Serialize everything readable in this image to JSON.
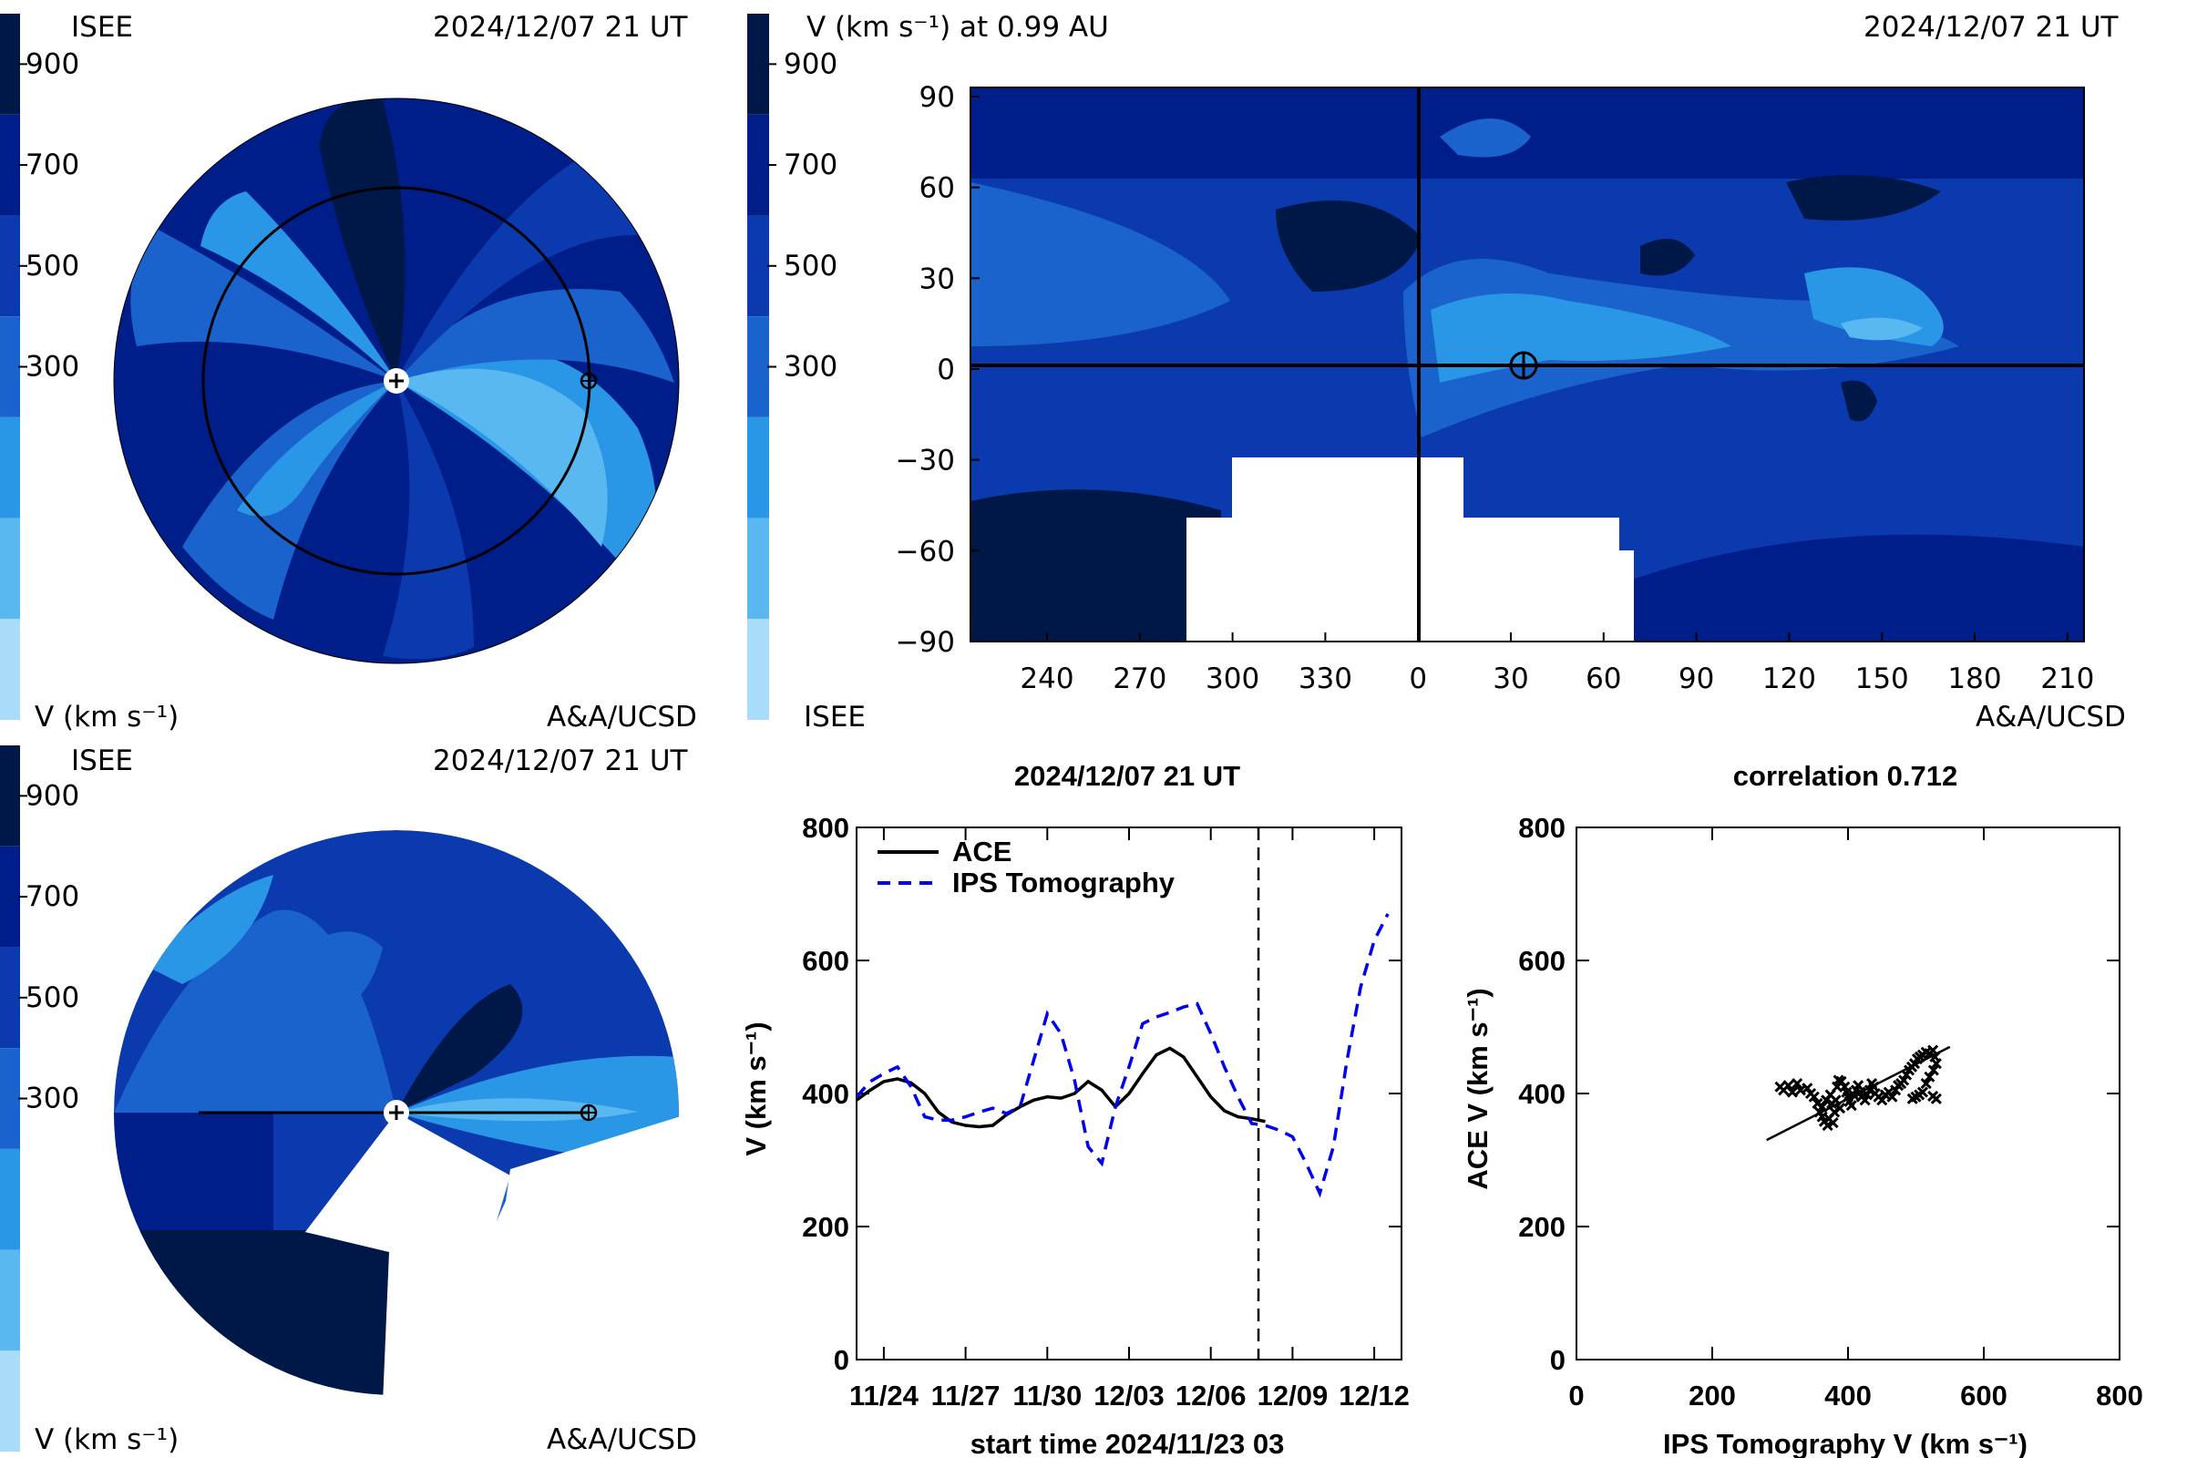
{
  "colorbar": {
    "levels": [
      "#001848",
      "#001e8a",
      "#0a3aae",
      "#1a62cc",
      "#2a96e6",
      "#5ab8f0",
      "#a8dcf8"
    ],
    "tick_labels": [
      "900",
      "700",
      "500",
      "300"
    ]
  },
  "panel_ecliptic": {
    "source_label": "ISEE",
    "timestamp": "2024/12/07 21 UT",
    "unit_label": "V (km s⁻¹)",
    "credit": "A&A/UCSD"
  },
  "panel_meridional": {
    "source_label": "ISEE",
    "timestamp": "2024/12/07 21 UT",
    "unit_label": "V (km s⁻¹)",
    "credit": "A&A/UCSD"
  },
  "panel_map": {
    "title": "V (km s⁻¹) at 0.99 AU",
    "timestamp": "2024/12/07 21 UT",
    "source_label": "ISEE",
    "credit": "A&A/UCSD",
    "x_ticks": [
      "240",
      "270",
      "300",
      "330",
      "0",
      "30",
      "60",
      "90",
      "120",
      "150",
      "180",
      "210"
    ],
    "y_ticks": [
      "90",
      "60",
      "30",
      "0",
      "−30",
      "−60",
      "−90"
    ]
  },
  "chart_data": [
    {
      "type": "line",
      "title": "2024/12/07 21 UT",
      "xlabel": "start time 2024/11/23 03",
      "ylabel": "V (km s⁻¹)",
      "x_unit": "days since start",
      "xlim": [
        0,
        20
      ],
      "ylim": [
        0,
        800
      ],
      "x_tick_labels": [
        "11/24",
        "11/27",
        "11/30",
        "12/03",
        "12/06",
        "12/09",
        "12/12"
      ],
      "x_tick_values": [
        1,
        4,
        7,
        10,
        13,
        16,
        19
      ],
      "y_tick_values": [
        0,
        200,
        400,
        600,
        800
      ],
      "now_marker_x": 14.75,
      "series": [
        {
          "name": "ACE",
          "style": "solid",
          "color": "#000000",
          "x": [
            0,
            0.5,
            1,
            1.5,
            2,
            2.5,
            3,
            3.5,
            4,
            4.5,
            5,
            5.5,
            6,
            6.5,
            7,
            7.5,
            8,
            8.5,
            9,
            9.5,
            10,
            10.5,
            11,
            11.5,
            12,
            12.5,
            13,
            13.5,
            14,
            14.5,
            15
          ],
          "y": [
            390,
            405,
            418,
            422,
            416,
            400,
            372,
            357,
            352,
            350,
            352,
            368,
            380,
            390,
            395,
            393,
            400,
            418,
            405,
            380,
            400,
            430,
            458,
            468,
            455,
            425,
            395,
            374,
            365,
            362,
            358
          ]
        },
        {
          "name": "IPS Tomography",
          "style": "dashed",
          "color": "#0000ee",
          "x": [
            0,
            0.5,
            1,
            1.5,
            2,
            2.5,
            3,
            3.5,
            4,
            4.5,
            5,
            5.5,
            6,
            6.5,
            7,
            7.5,
            8,
            8.5,
            9,
            9.5,
            10,
            10.5,
            11,
            11.5,
            12,
            12.5,
            13,
            13.5,
            14,
            14.5,
            15,
            15.5,
            16,
            16.5,
            17,
            17.5,
            18,
            18.5,
            19,
            19.5
          ],
          "y": [
            395,
            418,
            430,
            440,
            410,
            365,
            360,
            360,
            365,
            372,
            378,
            370,
            380,
            450,
            520,
            490,
            420,
            320,
            295,
            380,
            440,
            505,
            515,
            522,
            530,
            535,
            490,
            440,
            395,
            355,
            352,
            345,
            335,
            295,
            250,
            320,
            450,
            560,
            630,
            670
          ]
        }
      ]
    },
    {
      "type": "scatter",
      "title": "correlation 0.712",
      "xlabel": "IPS Tomography V (km s⁻¹)",
      "ylabel": "ACE V (km s⁻¹)",
      "xlim": [
        0,
        800
      ],
      "ylim": [
        0,
        800
      ],
      "x_tick_values": [
        0,
        200,
        400,
        600,
        800
      ],
      "y_tick_values": [
        0,
        200,
        400,
        600,
        800
      ],
      "points": [
        [
          300,
          410
        ],
        [
          305,
          405
        ],
        [
          312,
          412
        ],
        [
          318,
          402
        ],
        [
          325,
          415
        ],
        [
          330,
          405
        ],
        [
          340,
          408
        ],
        [
          345,
          400
        ],
        [
          350,
          395
        ],
        [
          355,
          385
        ],
        [
          358,
          372
        ],
        [
          362,
          365
        ],
        [
          365,
          358
        ],
        [
          370,
          352
        ],
        [
          372,
          362
        ],
        [
          378,
          356
        ],
        [
          380,
          372
        ],
        [
          382,
          390
        ],
        [
          384,
          410
        ],
        [
          386,
          420
        ],
        [
          390,
          418
        ],
        [
          395,
          410
        ],
        [
          398,
          402
        ],
        [
          400,
          395
        ],
        [
          402,
          388
        ],
        [
          405,
          382
        ],
        [
          408,
          398
        ],
        [
          412,
          405
        ],
        [
          415,
          412
        ],
        [
          418,
          402
        ],
        [
          420,
          395
        ],
        [
          425,
          390
        ],
        [
          428,
          398
        ],
        [
          432,
          405
        ],
        [
          435,
          415
        ],
        [
          438,
          410
        ],
        [
          440,
          400
        ],
        [
          445,
          395
        ],
        [
          450,
          390
        ],
        [
          455,
          398
        ],
        [
          460,
          402
        ],
        [
          465,
          395
        ],
        [
          470,
          405
        ],
        [
          474,
          412
        ],
        [
          478,
          415
        ],
        [
          482,
          420
        ],
        [
          486,
          428
        ],
        [
          490,
          435
        ],
        [
          494,
          440
        ],
        [
          498,
          445
        ],
        [
          502,
          452
        ],
        [
          506,
          455
        ],
        [
          510,
          458
        ],
        [
          515,
          462
        ],
        [
          520,
          460
        ],
        [
          525,
          465
        ],
        [
          528,
          455
        ],
        [
          530,
          445
        ],
        [
          526,
          435
        ],
        [
          520,
          425
        ],
        [
          515,
          415
        ],
        [
          510,
          402
        ],
        [
          505,
          398
        ],
        [
          500,
          395
        ],
        [
          495,
          392
        ],
        [
          530,
          392
        ],
        [
          525,
          396
        ],
        [
          362,
          380
        ],
        [
          368,
          390
        ],
        [
          374,
          398
        ],
        [
          376,
          385
        ],
        [
          388,
          378
        ]
      ],
      "fit_line": [
        [
          280,
          330
        ],
        [
          550,
          470
        ]
      ]
    }
  ]
}
